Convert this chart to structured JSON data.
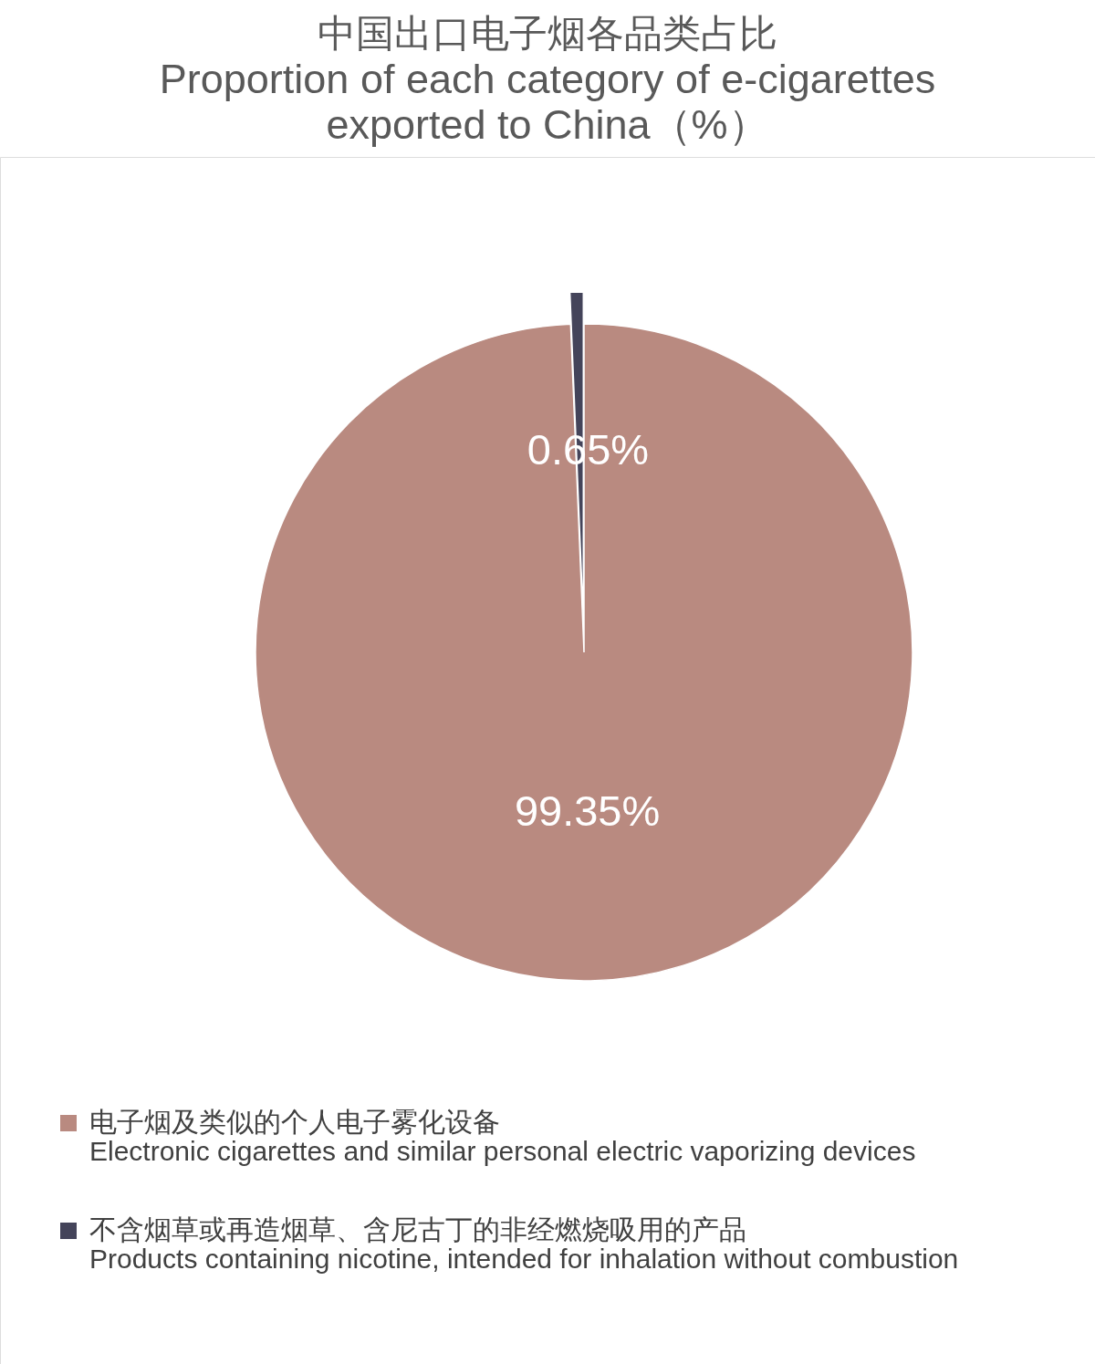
{
  "chart_data": {
    "type": "pie",
    "title": "中国出口电子烟各品类占比",
    "subtitle": "Proportion of each category of e-cigarettes exported to China（%）",
    "categories": [
      "电子烟及类似的个人电子雾化设备\nElectronic cigarettes and similar personal electric vaporizing devices",
      "不含烟草或再造烟草、含尼古丁的非经燃烧吸用的产品\nProducts containing nicotine, intended for inhalation without combustion"
    ],
    "values": [
      99.35,
      0.65
    ],
    "colors": [
      "#b98a80",
      "#44445a"
    ],
    "value_labels": [
      "99.35%",
      "0.65%"
    ],
    "legend": "bottom"
  }
}
